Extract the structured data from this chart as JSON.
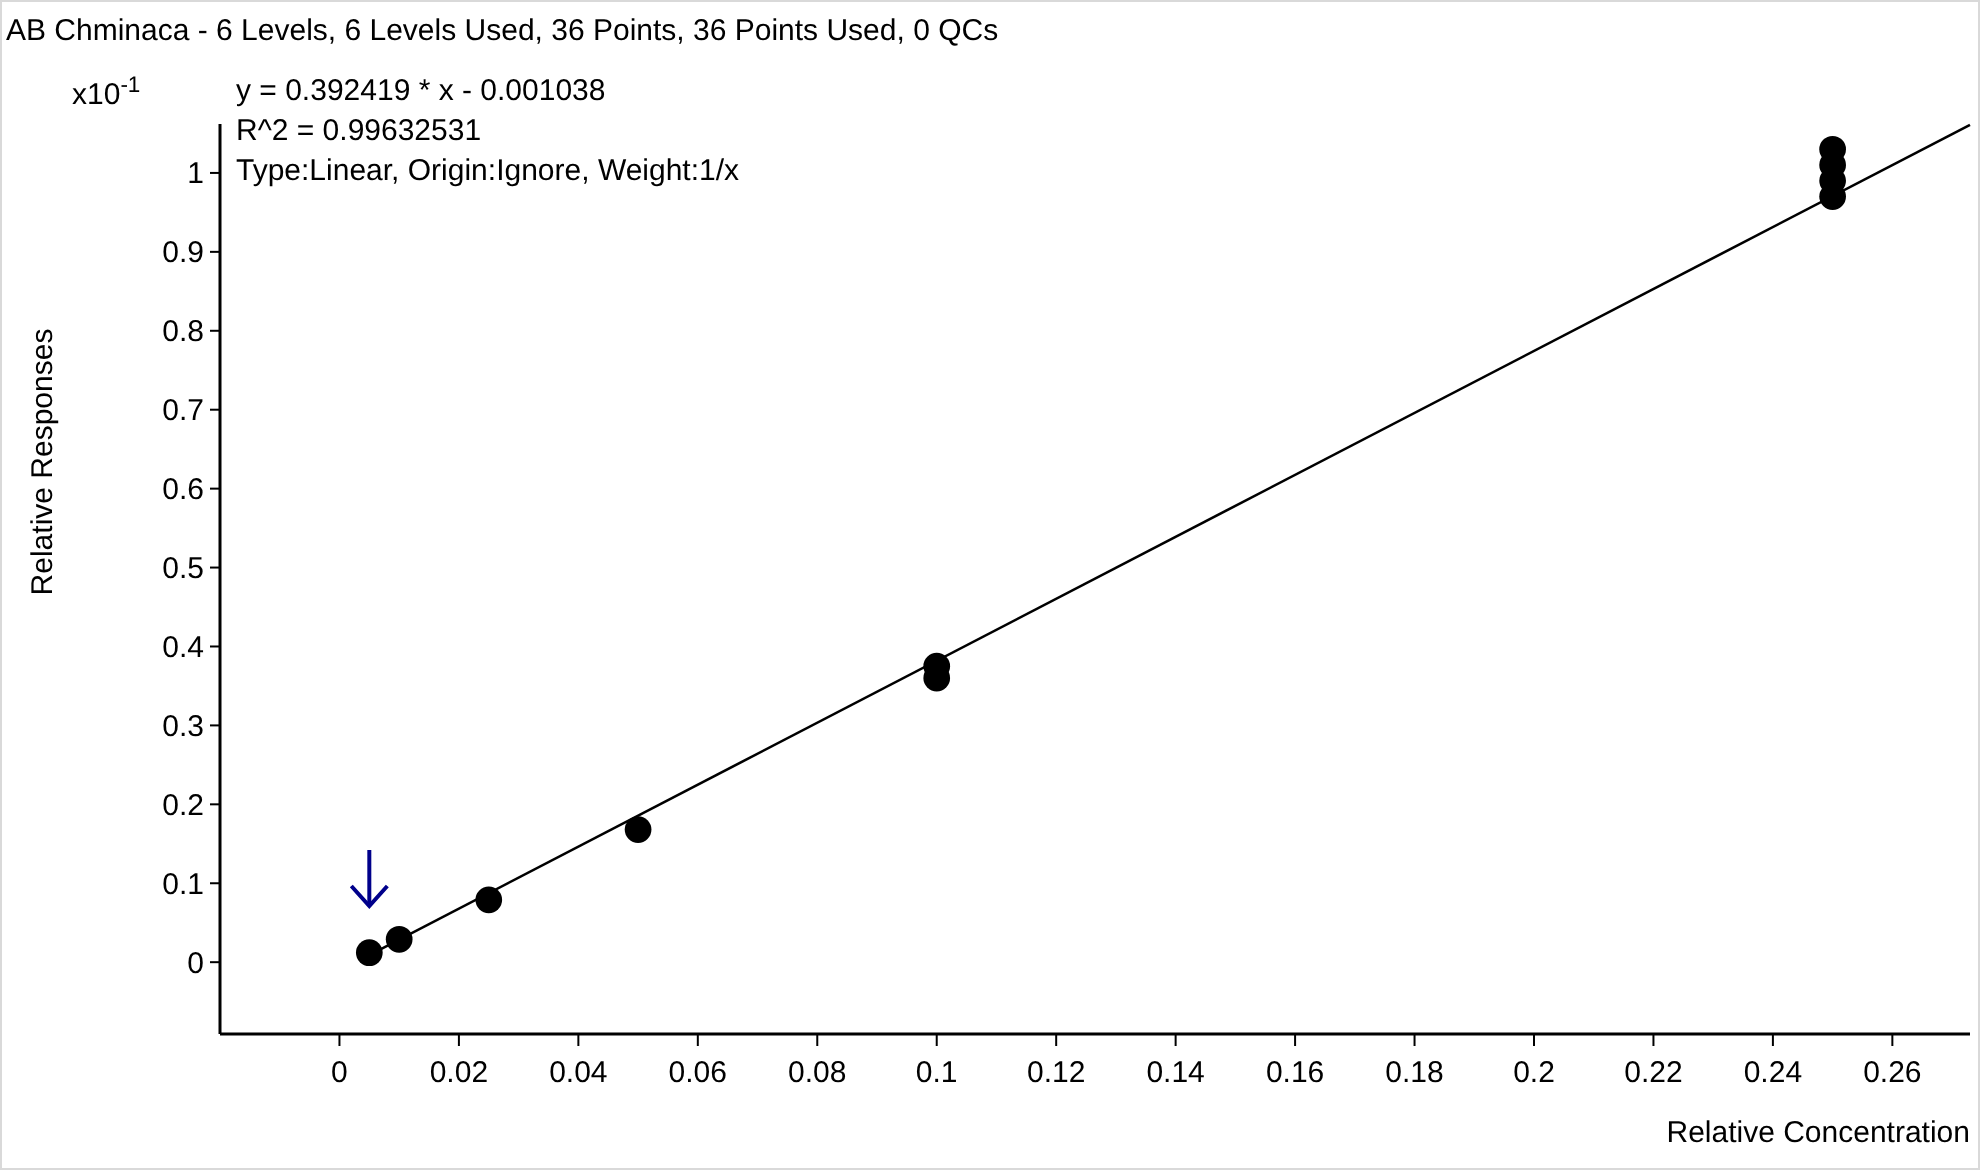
{
  "chart_data": {
    "type": "scatter",
    "title": "AB Chminaca - 6 Levels, 6 Levels Used, 36 Points, 36 Points Used, 0 QCs",
    "xlabel": "Relative Concentration",
    "ylabel": "Relative Responses",
    "annotations": [
      "x10$^{-1}$",
      "y = 0.392419 * x  - 0.001038",
      "R^2 = 0.99632531",
      "Type:Linear, Origin:Ignore, Weight:1/x"
    ],
    "xlim": [
      -0.02,
      0.273
    ],
    "xticks": [
      0,
      0.02,
      0.04,
      0.06,
      0.08,
      0.1,
      0.12,
      0.14,
      0.16,
      0.18,
      0.2,
      0.22,
      0.24,
      0.26
    ],
    "ylim": [
      -0.091,
      1.062
    ],
    "yticks": [
      0,
      0.1,
      0.2,
      0.3,
      0.4,
      0.5,
      0.6,
      0.7,
      0.8,
      0.9,
      1
    ],
    "grid": false,
    "series": [
      {
        "color": "#000000",
        "marker": "circle",
        "x": [
          0.005,
          0.01,
          0.025,
          0.05,
          0.1,
          0.1,
          0.25,
          0.25,
          0.25,
          0.25
        ],
        "values": [
          0.012,
          0.029,
          0.079,
          0.168,
          0.36,
          0.375,
          0.97,
          0.99,
          1.01,
          1.03
        ]
      },
      {
        "type": "line",
        "color": "#000000",
        "x": [
          0.005,
          0.273
        ],
        "values": [
          0.009,
          1.061
        ],
        "line_style": "solid"
      }
    ]
  }
}
